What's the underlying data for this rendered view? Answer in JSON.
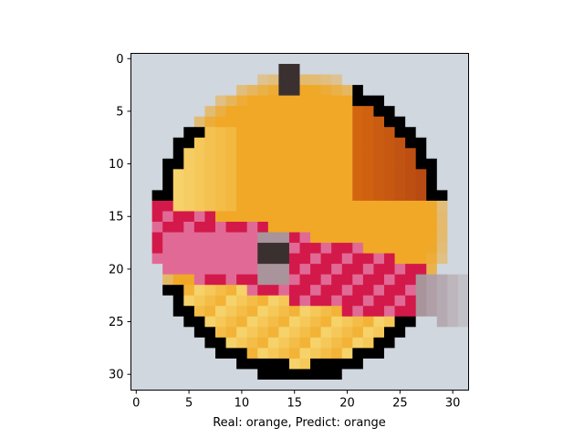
{
  "figure": {
    "caption": "Real: orange, Predict: orange",
    "image_subject": "pixelated orange with red ribbon",
    "image_resolution": "32x32",
    "x_ticks": [
      "0",
      "5",
      "10",
      "15",
      "20",
      "25",
      "30"
    ],
    "y_ticks": [
      "0",
      "5",
      "10",
      "15",
      "20",
      "25",
      "30"
    ],
    "background_color": "#d0d7de",
    "colors": {
      "orange_light": "#f6d26a",
      "orange_mid": "#f0a826",
      "orange_dark": "#d86a10",
      "orange_shadow": "#b84a14",
      "ribbon_red": "#d3194a",
      "ribbon_pink": "#e06a95",
      "ribbon_grey": "#a9949c",
      "stem_dark": "#3a3030"
    }
  }
}
